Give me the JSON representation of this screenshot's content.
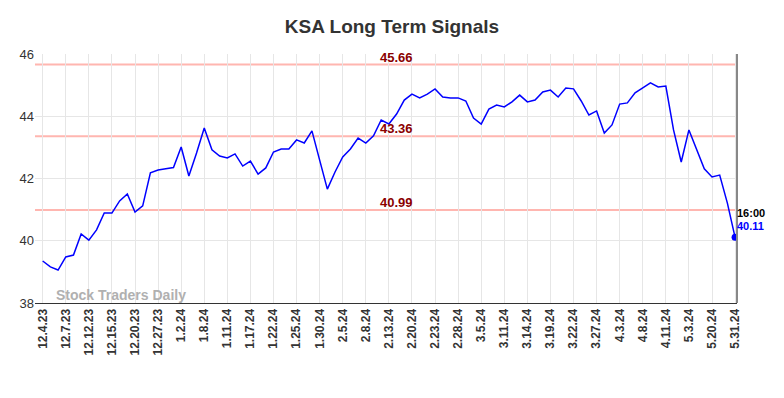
{
  "chart_data": {
    "type": "line",
    "title": "KSA Long Term Signals",
    "categories": [
      "12.4.23",
      null,
      null,
      "12.7.23",
      null,
      null,
      "12.12.23",
      null,
      null,
      "12.15.23",
      null,
      null,
      "12.20.23",
      null,
      null,
      "12.27.23",
      null,
      null,
      "1.2.24",
      null,
      null,
      "1.8.24",
      null,
      null,
      "1.11.24",
      null,
      null,
      "1.17.24",
      null,
      null,
      "1.22.24",
      null,
      null,
      "1.25.24",
      null,
      null,
      "1.30.24",
      null,
      null,
      "2.5.24",
      null,
      null,
      "2.8.24",
      null,
      null,
      "2.13.24",
      null,
      null,
      "2.20.24",
      null,
      null,
      "2.23.24",
      null,
      null,
      "2.28.24",
      null,
      null,
      "3.5.24",
      null,
      null,
      "3.11.24",
      null,
      null,
      "3.14.24",
      null,
      null,
      "3.19.24",
      null,
      null,
      "3.22.24",
      null,
      null,
      "3.27.24",
      null,
      null,
      "4.3.24",
      null,
      null,
      "4.8.24",
      null,
      null,
      "4.11.24",
      null,
      null,
      "5.3.24",
      null,
      null,
      "5.20.24",
      null,
      null,
      "5.31.24"
    ],
    "values": [
      39.35,
      39.16,
      39.06,
      39.48,
      39.54,
      40.22,
      40.02,
      40.35,
      40.89,
      40.89,
      41.28,
      41.5,
      40.92,
      41.12,
      42.18,
      42.27,
      42.31,
      42.35,
      43.01,
      42.08,
      42.82,
      43.62,
      42.92,
      42.72,
      42.66,
      42.79,
      42.4,
      42.56,
      42.14,
      42.34,
      42.85,
      42.95,
      42.95,
      43.24,
      43.14,
      43.53,
      42.59,
      41.66,
      42.21,
      42.69,
      42.95,
      43.3,
      43.14,
      43.37,
      43.88,
      43.75,
      44.07,
      44.52,
      44.71,
      44.59,
      44.71,
      44.88,
      44.62,
      44.59,
      44.59,
      44.49,
      43.94,
      43.75,
      44.23,
      44.36,
      44.3,
      44.46,
      44.68,
      44.46,
      44.52,
      44.78,
      44.84,
      44.62,
      44.91,
      44.88,
      44.49,
      44.04,
      44.17,
      43.46,
      43.72,
      44.39,
      44.43,
      44.75,
      44.91,
      45.07,
      44.94,
      44.97,
      43.56,
      42.53,
      43.56,
      42.92,
      42.31,
      42.05,
      42.11,
      41.21,
      40.11
    ],
    "color": "#0000ff",
    "marker": "last",
    "ylim": [
      38,
      46
    ],
    "yticks": [
      38,
      40,
      42,
      44,
      46
    ],
    "grid": true,
    "levels": [
      45.66,
      43.36,
      40.99
    ],
    "last_time": "16:00",
    "last_value": 40.11,
    "watermark": "Stock Traders Daily"
  }
}
